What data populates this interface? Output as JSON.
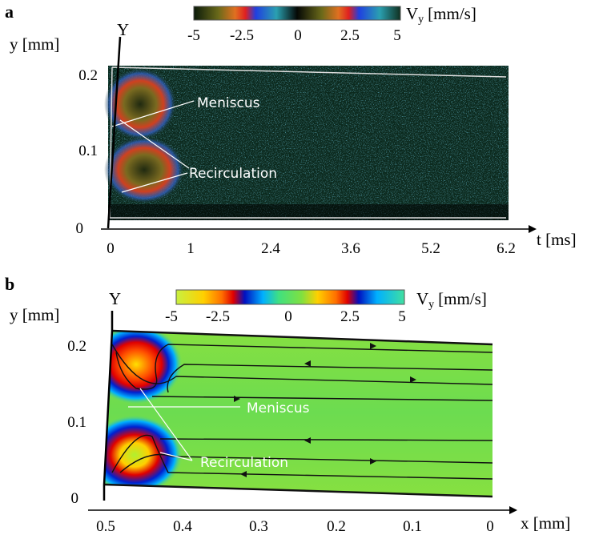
{
  "panels": [
    {
      "label": "a",
      "axis_name": "Y",
      "y_label": "y [mm]",
      "yticks": [
        "0.2",
        "0.1",
        "0"
      ],
      "x_label": "t [ms]",
      "xticks": [
        "0",
        "1",
        "2.4",
        "3.6",
        "5.2",
        "6.2"
      ],
      "colorbar": {
        "symbol": "V",
        "subscript": "y",
        "unit": "[mm/s]",
        "ticks": [
          "-5",
          "-2.5",
          "0",
          "2.5",
          "5"
        ]
      },
      "annotations": [
        "Meniscus",
        "Recirculation"
      ]
    },
    {
      "label": "b",
      "axis_name": "Y",
      "y_label": "y [mm]",
      "yticks": [
        "0.2",
        "0.1",
        "0"
      ],
      "x_label": "x [mm]",
      "xticks": [
        "0.5",
        "0.4",
        "0.3",
        "0.2",
        "0.1",
        "0"
      ],
      "colorbar": {
        "symbol": "V",
        "subscript": "y",
        "unit": "[mm/s]",
        "ticks": [
          "-5",
          "-2.5",
          "0",
          "2.5",
          "5"
        ]
      },
      "annotations": [
        "Meniscus",
        "Recirculation"
      ]
    }
  ]
}
